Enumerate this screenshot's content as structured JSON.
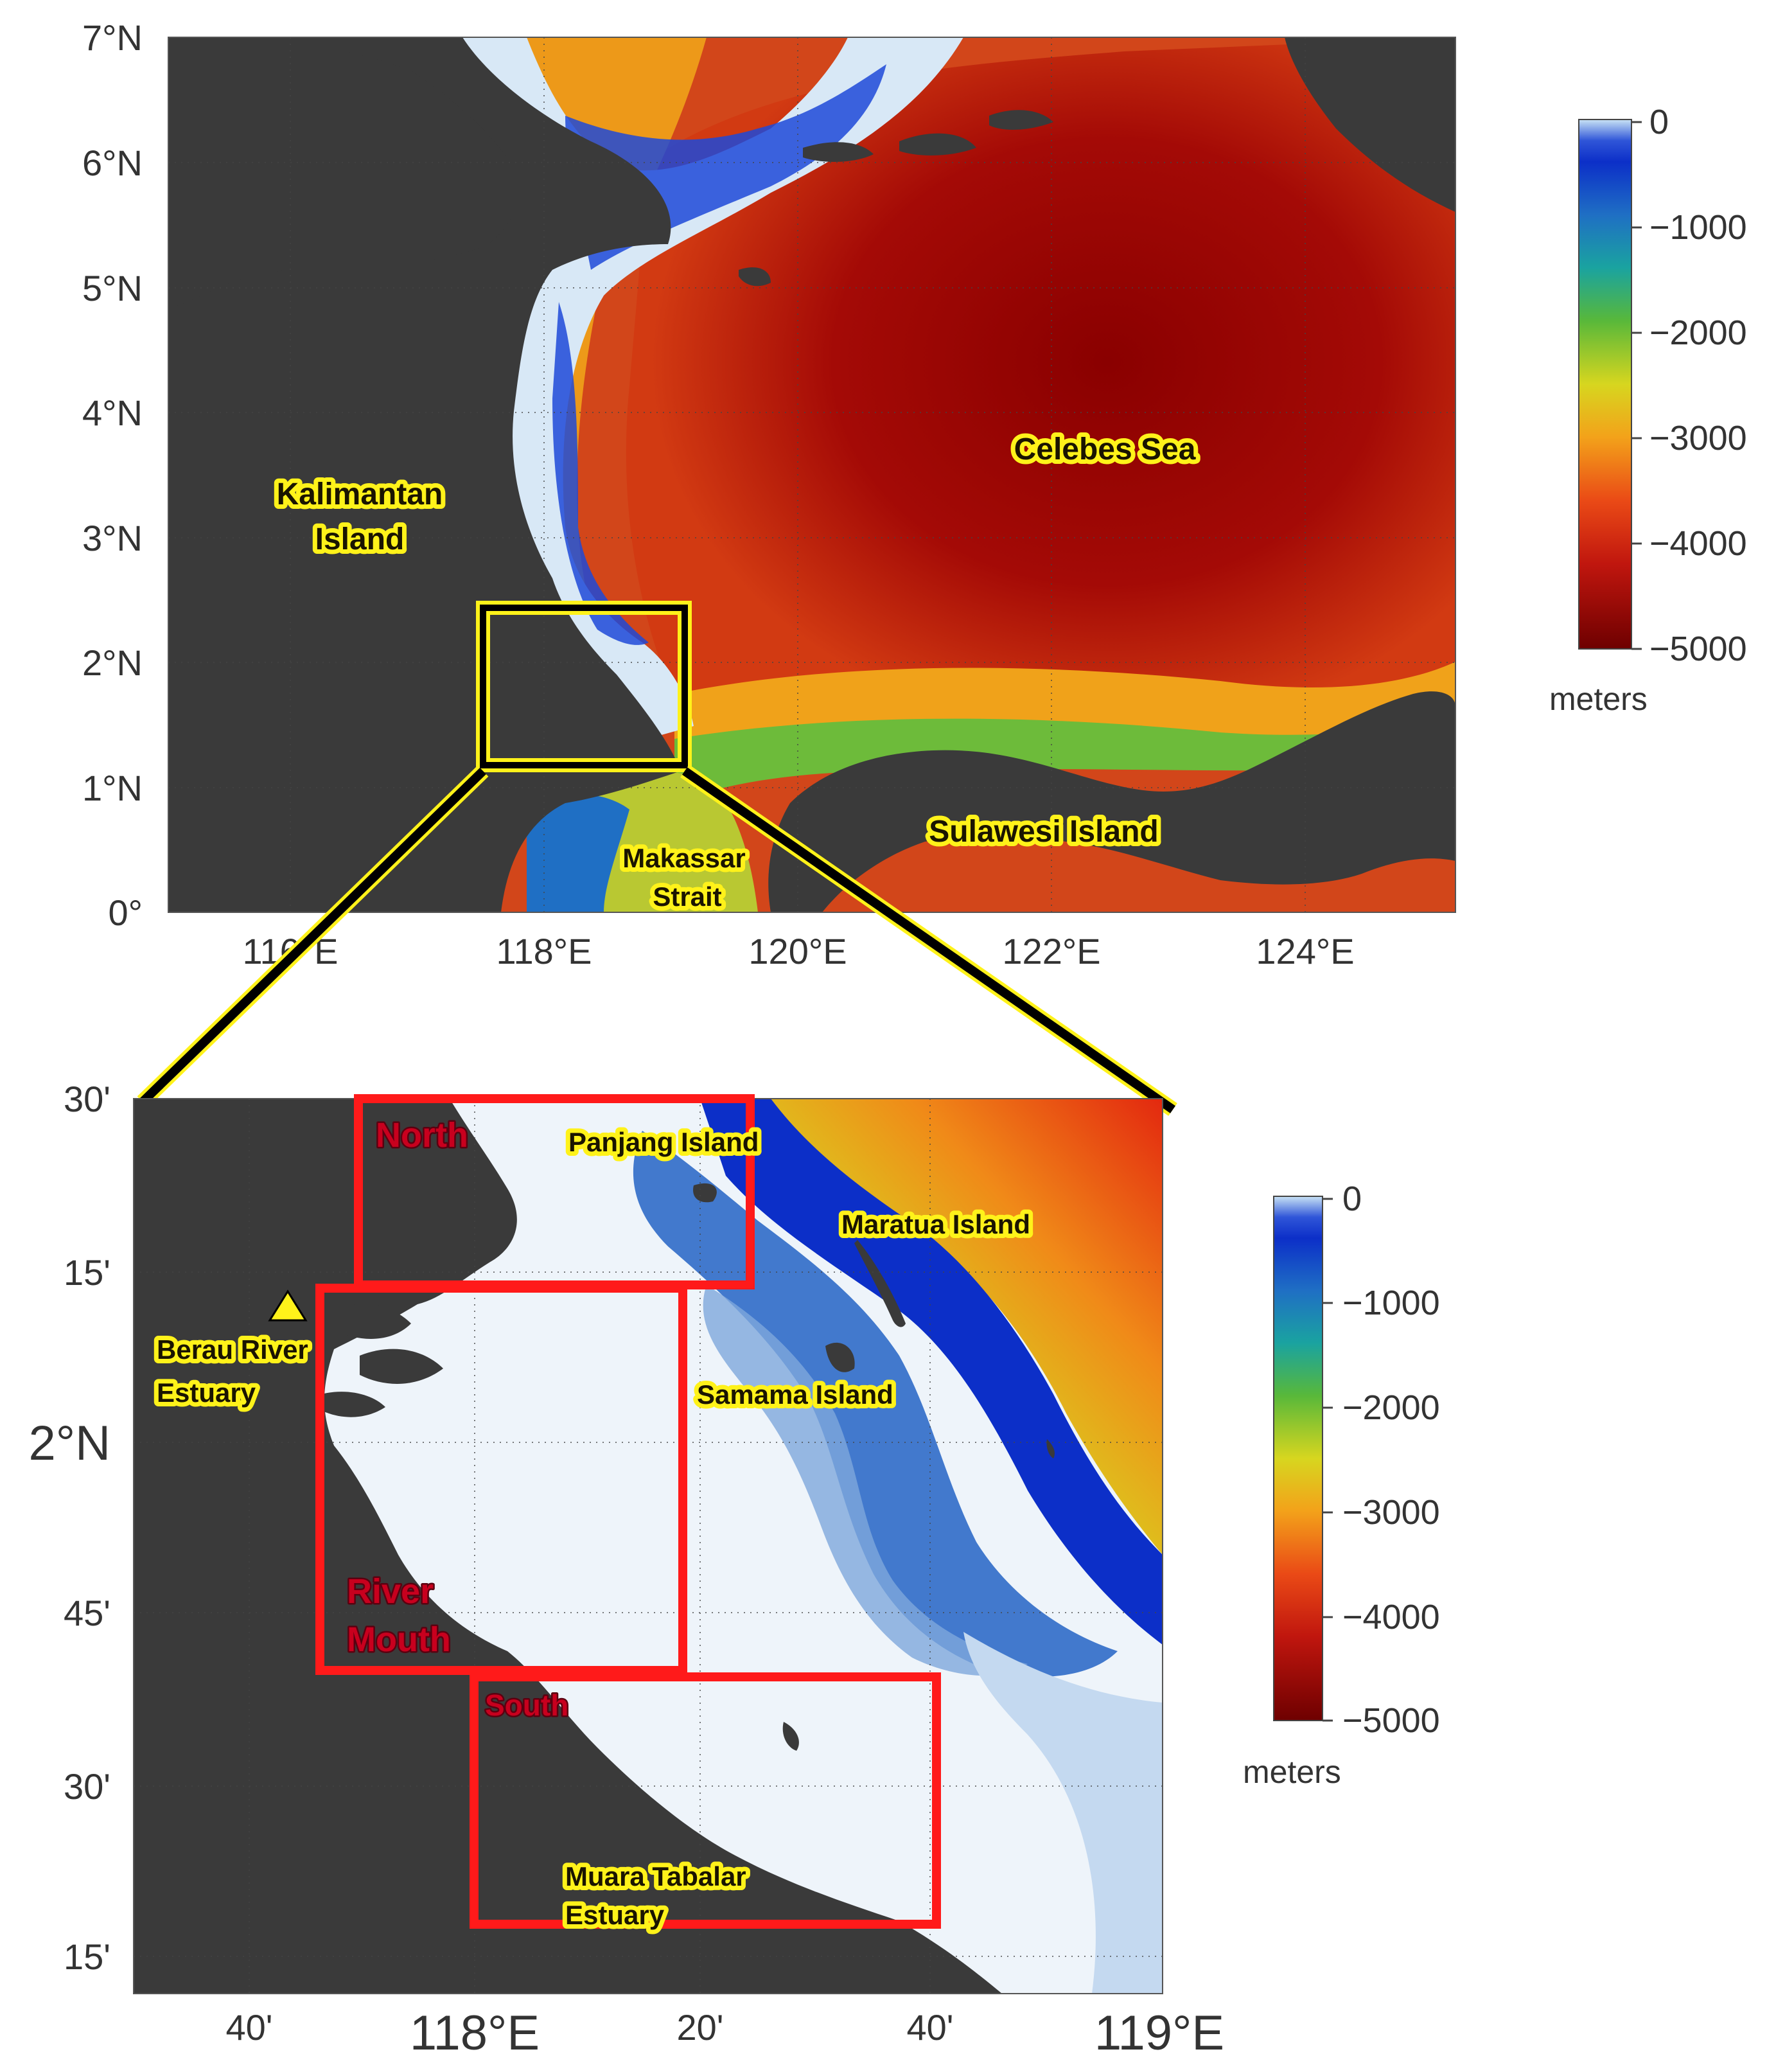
{
  "overview_map": {
    "lat_ticks": [
      "0°",
      "1°N",
      "2°N",
      "3°N",
      "4°N",
      "5°N",
      "6°N",
      "7°N"
    ],
    "lon_ticks": [
      "116°E",
      "118°E",
      "120°E",
      "122°E",
      "124°E"
    ],
    "lat_range": [
      0,
      7
    ],
    "lon_range": [
      115,
      125.2
    ],
    "labels": {
      "kalimantan": [
        "Kalimantan",
        "Island"
      ],
      "celebes": "Celebes Sea",
      "sulawesi": "Sulawesi Island",
      "makassar": [
        "Makassar",
        "Strait"
      ]
    },
    "inset_box": {
      "lon": [
        117.5,
        119.2
      ],
      "lat": [
        1.1,
        2.45
      ]
    }
  },
  "detail_map": {
    "lat_ticks": [
      "15'",
      "30'",
      "45'",
      "2°N",
      "15'",
      "30'"
    ],
    "lon_ticks": [
      "40'",
      "118°E",
      "20'",
      "40'",
      "119°E"
    ],
    "labels": {
      "panjang": "Panjang Island",
      "maratua": "Maratua Island",
      "berau": [
        "Berau River",
        "Estuary"
      ],
      "samama": "Samama Island",
      "muara": [
        "Muara Tabalar",
        "Estuary"
      ]
    },
    "station_marker": "triangle-marker-icon",
    "regions": [
      {
        "name": "North",
        "lines": [
          "North"
        ]
      },
      {
        "name": "River Mouth",
        "lines": [
          "River",
          "Mouth"
        ]
      },
      {
        "name": "South",
        "lines": [
          "South"
        ]
      }
    ]
  },
  "colorbar": {
    "ticks": [
      "0",
      "−1000",
      "−2000",
      "−3000",
      "−4000",
      "−5000"
    ],
    "unit": "meters",
    "range": [
      -5000,
      0
    ]
  },
  "colors": {
    "land": "#3a3a3a",
    "region_box": "#ff1a1a",
    "label_glow": "#fff21a",
    "inset_line": "#000000"
  }
}
